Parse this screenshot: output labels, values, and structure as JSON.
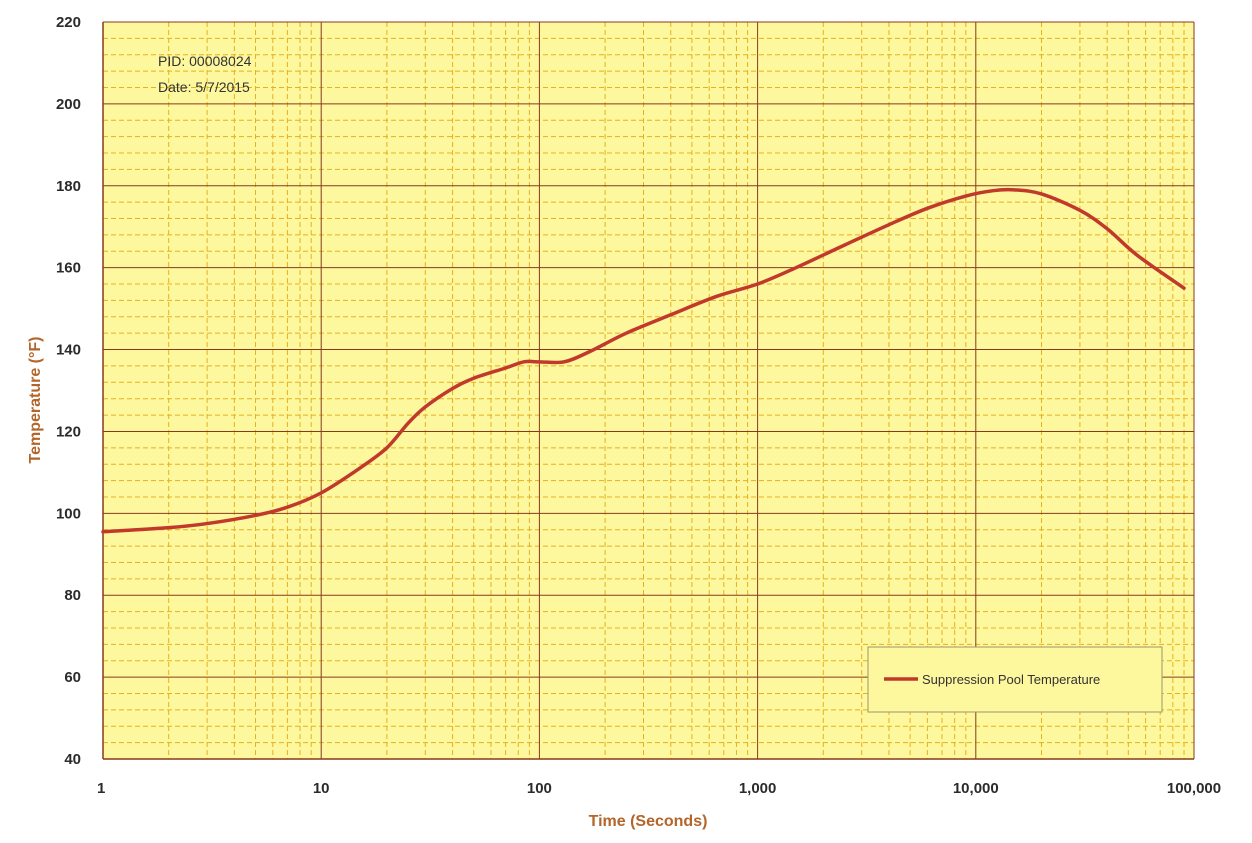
{
  "chart_data": {
    "type": "line",
    "title": "",
    "xlabel": "Time (Seconds)",
    "ylabel": "Temperature (°F)",
    "x_scale": "log",
    "xlim": [
      1,
      100000
    ],
    "ylim": [
      40,
      220
    ],
    "x_ticks": [
      1,
      10,
      100,
      1000,
      10000,
      100000
    ],
    "x_tick_labels": [
      "1",
      "10",
      "100",
      "1,000",
      "10,000",
      "100,000"
    ],
    "y_ticks": [
      40,
      60,
      80,
      100,
      120,
      140,
      160,
      180,
      200,
      220
    ],
    "y_tick_labels": [
      "40",
      "60",
      "80",
      "100",
      "120",
      "140",
      "160",
      "180",
      "200",
      "220"
    ],
    "grid": true,
    "minor_grid": true,
    "legend_position": "bottom-right",
    "annotations": [
      "PID:   00008024",
      "Date: 5/7/2015"
    ],
    "colors": {
      "plot_background": "#fdf79e",
      "major_grid": "#8a3a1c",
      "minor_grid": "#e8b020",
      "series": "#c0392b",
      "axis_title": "#b3652a"
    },
    "series": [
      {
        "name": "Suppression Pool Temperature",
        "x": [
          1,
          2,
          3,
          5,
          7,
          10,
          15,
          20,
          25,
          30,
          40,
          50,
          70,
          85,
          100,
          130,
          170,
          250,
          400,
          650,
          1000,
          1500,
          2500,
          4000,
          6000,
          9000,
          12000,
          15000,
          20000,
          30000,
          40000,
          55000,
          90000
        ],
        "y": [
          95.5,
          96.5,
          97.5,
          99.5,
          101.5,
          105,
          111,
          116,
          122,
          126,
          130.5,
          133,
          135.5,
          137,
          137,
          137,
          139.5,
          144,
          148.5,
          153,
          156,
          160,
          165.5,
          170.5,
          174.5,
          177.5,
          178.8,
          179,
          178,
          174,
          169.5,
          163,
          155
        ]
      }
    ]
  }
}
